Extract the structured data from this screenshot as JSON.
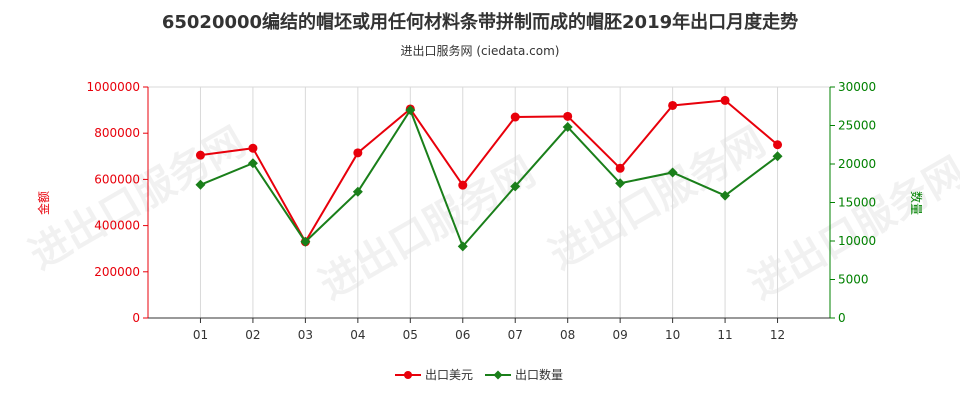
{
  "title": "65020000编结的帽坯或用任何材料条带拼制而成的帽胚2019年出口月度走势",
  "subtitle": "进出口服务网 (ciedata.com)",
  "watermark": "进出口服务网",
  "colors": {
    "left_axis": "#e8000b",
    "right_axis": "#008000",
    "grid": "#d9d9d9"
  },
  "chart_data": {
    "type": "line",
    "categories": [
      "01",
      "02",
      "03",
      "04",
      "05",
      "06",
      "07",
      "08",
      "09",
      "10",
      "11",
      "12"
    ],
    "y_left": {
      "label": "金额",
      "ylim": [
        0,
        1000000
      ],
      "ticks": [
        0,
        200000,
        400000,
        600000,
        800000,
        1000000
      ]
    },
    "y_right": {
      "label": "数量",
      "ylim": [
        0,
        30000
      ],
      "ticks": [
        0,
        5000,
        10000,
        15000,
        20000,
        25000,
        30000
      ]
    },
    "series": [
      {
        "name": "出口美元",
        "axis": "left",
        "color": "#e8000b",
        "marker": "circle",
        "values": [
          705000,
          735000,
          330000,
          715000,
          905000,
          575000,
          870000,
          873000,
          648000,
          920000,
          942000,
          750000
        ]
      },
      {
        "name": "出口数量",
        "axis": "right",
        "color": "#1a7f1a",
        "marker": "diamond",
        "values": [
          17300,
          20100,
          9900,
          16400,
          27000,
          9300,
          17100,
          24800,
          17500,
          18900,
          15900,
          21000
        ]
      }
    ],
    "grid": "vertical",
    "legend": "bottom-center"
  }
}
